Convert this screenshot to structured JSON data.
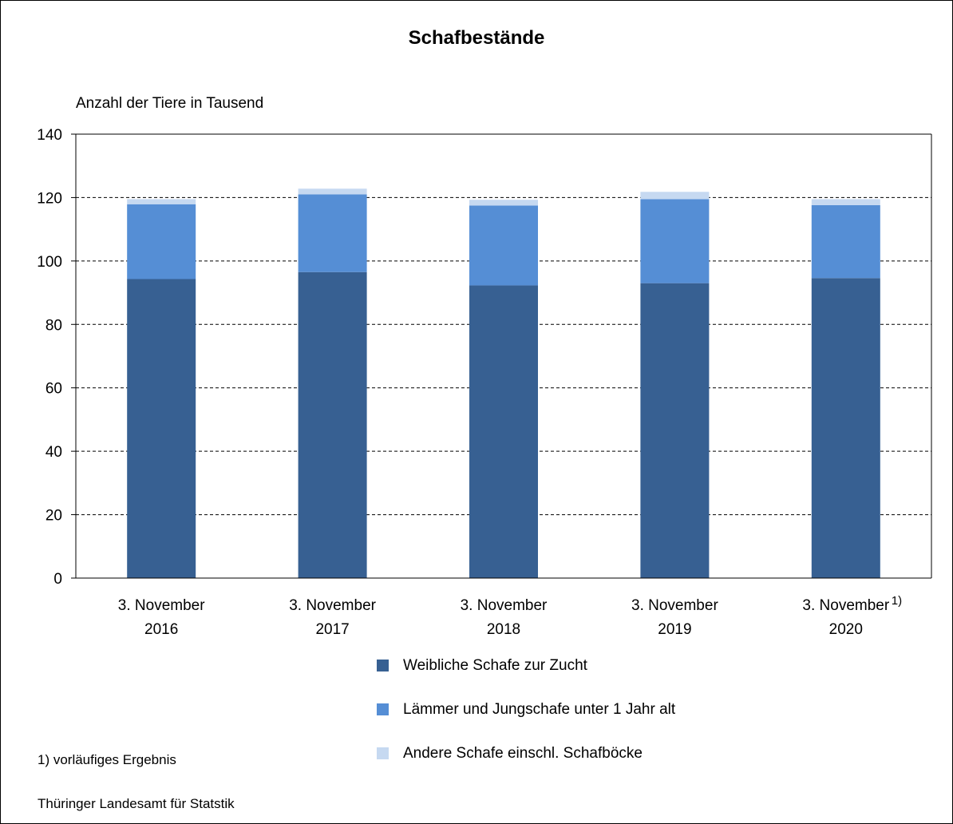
{
  "chart_data": {
    "type": "bar",
    "stacked": true,
    "title": "Schafbestände",
    "ylabel": "Anzahl der Tiere in Tausend",
    "xlabel": "",
    "ylim": [
      0,
      140
    ],
    "yticks": [
      "0",
      "20",
      "40",
      "60",
      "80",
      "100",
      "120",
      "140"
    ],
    "grid": true,
    "legend_position": "bottom",
    "categories": [
      {
        "line1": "3. November",
        "line2": "2016",
        "footnote": ""
      },
      {
        "line1": "3. November",
        "line2": "2017",
        "footnote": ""
      },
      {
        "line1": "3. November",
        "line2": "2018",
        "footnote": ""
      },
      {
        "line1": "3. November",
        "line2": "2019",
        "footnote": ""
      },
      {
        "line1": "3. November",
        "line2": "2020",
        "footnote": "1)"
      }
    ],
    "series": [
      {
        "name": "Weibliche Schafe zur Zucht",
        "color": "#376092",
        "values": [
          94.3,
          96.5,
          92.3,
          93.0,
          94.6
        ]
      },
      {
        "name": "Lämmer und Jungschafe unter 1 Jahr alt",
        "color": "#558ED5",
        "values": [
          23.6,
          24.5,
          25.2,
          26.5,
          23.0
        ]
      },
      {
        "name": "Andere Schafe einschl. Schafböcke",
        "color": "#C6D9F1",
        "values": [
          1.6,
          1.8,
          1.8,
          2.3,
          1.9
        ]
      }
    ]
  },
  "footnote": "1) vorläufiges Ergebnis",
  "source": "Thüringer Landesamt für Statstik"
}
